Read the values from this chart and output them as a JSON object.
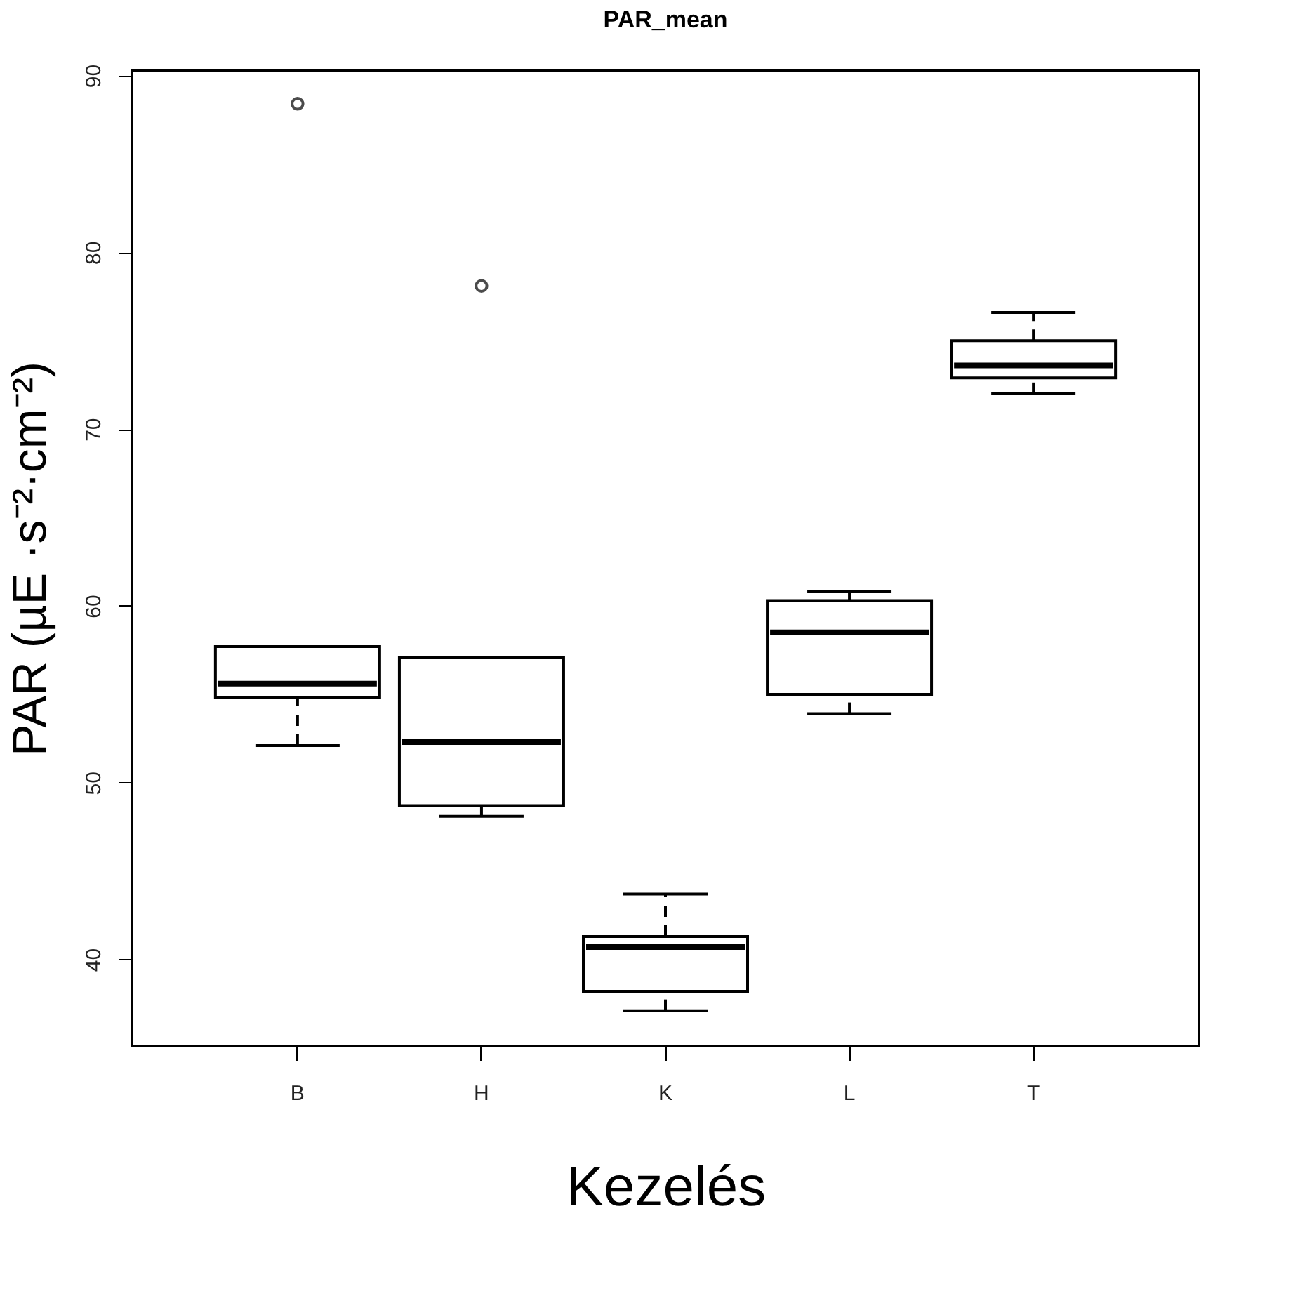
{
  "chart_data": {
    "type": "box",
    "title": "PAR_mean",
    "xlabel": "Kezelés",
    "ylabel": "PAR (µE ·s⁻²·cm⁻²)",
    "categories": [
      "B",
      "H",
      "K",
      "L",
      "T"
    ],
    "boxes": [
      {
        "low": 52.1,
        "q1": 54.8,
        "median": 55.6,
        "q3": 57.7,
        "high": 57.7,
        "outliers": [
          88.4
        ]
      },
      {
        "low": 48.1,
        "q1": 48.7,
        "median": 52.3,
        "q3": 57.1,
        "high": 57.1,
        "outliers": [
          78.1
        ]
      },
      {
        "low": 37.1,
        "q1": 38.2,
        "median": 40.7,
        "q3": 41.3,
        "high": 43.7
      },
      {
        "low": 53.9,
        "q1": 55.0,
        "median": 58.5,
        "q3": 60.3,
        "high": 60.8
      },
      {
        "low": 72.0,
        "q1": 72.9,
        "median": 73.6,
        "q3": 75.0,
        "high": 76.6
      }
    ],
    "ylim": [
      35.1,
      90.3
    ],
    "yticks": [
      40,
      50,
      60,
      70,
      80,
      90
    ],
    "grid": false
  }
}
